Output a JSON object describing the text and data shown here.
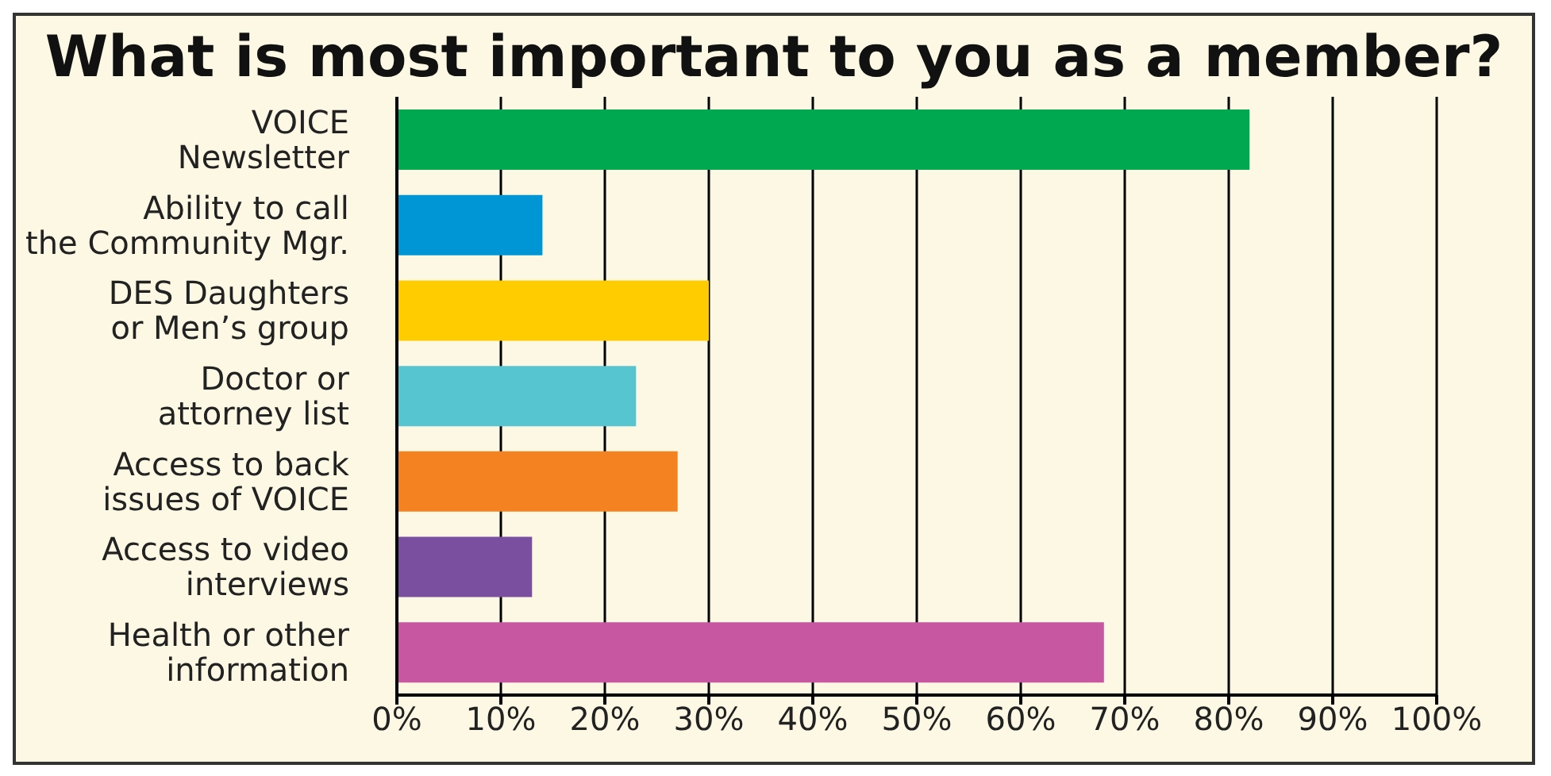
{
  "chart_data": {
    "type": "bar",
    "orientation": "horizontal",
    "title": "What is most important to you as a member?",
    "categories": [
      "VOICE Newsletter",
      "Ability to call the Community Mgr.",
      "DES Daughters or Men’s group",
      "Doctor or attorney list",
      "Access to back issues of VOICE",
      "Access to video interviews",
      "Health or other information"
    ],
    "values": [
      82,
      14,
      30,
      23,
      27,
      13,
      68
    ],
    "colors": [
      "#00a94f",
      "#0096d6",
      "#ffcc00",
      "#56c5d0",
      "#f58220",
      "#7b4fa0",
      "#c657a0"
    ],
    "xlim": [
      0,
      100
    ],
    "xticks": [
      {
        "value": 0,
        "label": "0%"
      },
      {
        "value": 10,
        "label": "10%"
      },
      {
        "value": 20,
        "label": "20%"
      },
      {
        "value": 30,
        "label": "30%"
      },
      {
        "value": 40,
        "label": "40%"
      },
      {
        "value": 50,
        "label": "50%"
      },
      {
        "value": 60,
        "label": "60%"
      },
      {
        "value": 70,
        "label": "70%"
      },
      {
        "value": 80,
        "label": "80%"
      },
      {
        "value": 90,
        "label": "90%"
      },
      {
        "value": 100,
        "label": "100%"
      }
    ],
    "grid": "x",
    "legend": false
  }
}
